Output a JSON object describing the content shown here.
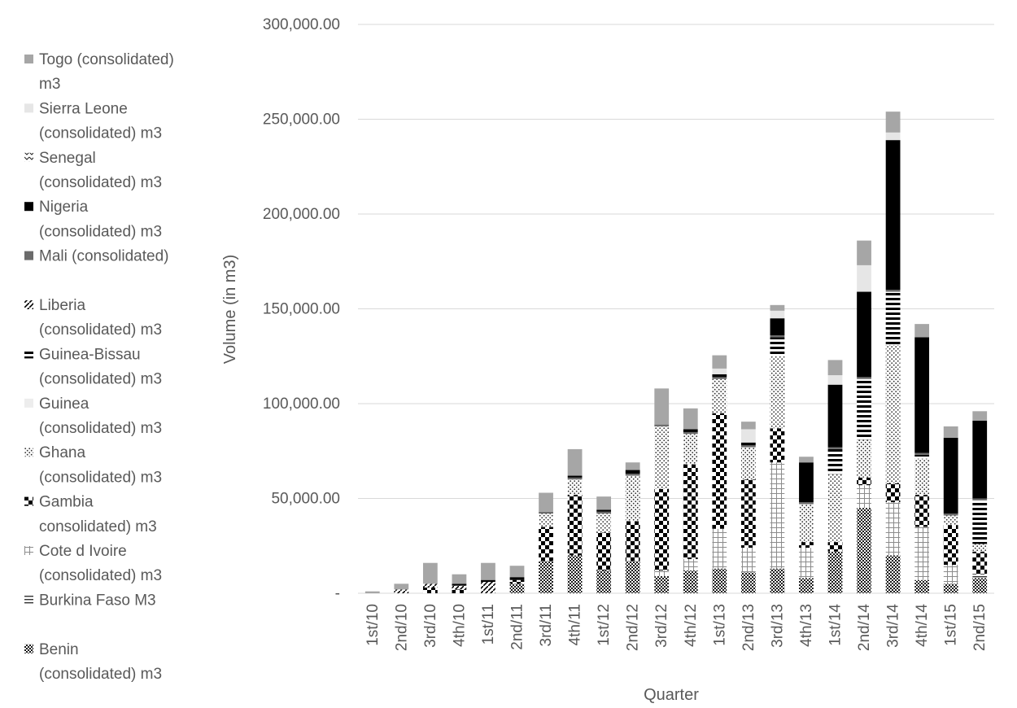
{
  "chart_data": {
    "type": "bar",
    "stacked": true,
    "title": "",
    "xlabel": "Quarter",
    "ylabel": "Volume (in m3)",
    "ylim": [
      0,
      300000
    ],
    "yticks": [
      0,
      50000,
      100000,
      150000,
      200000,
      250000,
      300000
    ],
    "ytick_labels": [
      "-",
      "50,000.00",
      "100,000.00",
      "150,000.00",
      "200,000.00",
      "250,000.00",
      "300,000.00"
    ],
    "grid": true,
    "legend_position": "left",
    "categories": [
      "1st/10",
      "2nd/10",
      "3rd/10",
      "4th/10",
      "1st/11",
      "2nd/11",
      "3rd/11",
      "4th/11",
      "1st/12",
      "2nd/12",
      "3rd/12",
      "4th/12",
      "1st/13",
      "2nd/13",
      "3rd/13",
      "4th/13",
      "1st/14",
      "2nd/14",
      "3rd/14",
      "4th/14",
      "1st/15",
      "2nd/15"
    ],
    "series": [
      {
        "name": "Benin (consolidated) m3",
        "pattern": "checker-dense",
        "values": [
          0,
          0,
          0,
          0,
          0,
          5000,
          17000,
          20000,
          12000,
          17000,
          9000,
          12000,
          13000,
          11000,
          13000,
          8000,
          22000,
          45000,
          20000,
          7000,
          5000,
          8000
        ]
      },
      {
        "name": "Burkina Faso M3",
        "pattern": "horizontal-lines",
        "values": [
          0,
          0,
          0,
          0,
          0,
          0,
          0,
          0,
          0,
          0,
          0,
          0,
          0,
          0,
          0,
          0,
          0,
          0,
          0,
          0,
          0,
          2000
        ]
      },
      {
        "name": "Cote d Ivoire (consolidated)  m3",
        "pattern": "grid",
        "values": [
          0,
          0,
          0,
          0,
          0,
          0,
          0,
          0,
          0,
          0,
          3000,
          6000,
          21000,
          13000,
          56000,
          16000,
          0,
          12000,
          28000,
          28000,
          10000,
          0
        ]
      },
      {
        "name": "Gambia consolidated) m3",
        "pattern": "big-checker",
        "values": [
          0,
          0,
          3000,
          2000,
          0,
          2000,
          18000,
          32000,
          20000,
          21000,
          43000,
          50000,
          61000,
          36000,
          18000,
          3000,
          5000,
          4000,
          10000,
          17000,
          21000,
          12000
        ]
      },
      {
        "name": "Ghana (consolidated) m3",
        "pattern": "dots",
        "values": [
          0,
          0,
          0,
          0,
          0,
          0,
          7000,
          8000,
          10000,
          24000,
          33000,
          16000,
          18000,
          17000,
          38000,
          20000,
          36000,
          20000,
          73000,
          19000,
          5000,
          4000
        ]
      },
      {
        "name": "Guinea (consolidated) m3",
        "pattern": "light-gray",
        "values": [
          0,
          0,
          0,
          0,
          0,
          0,
          0,
          0,
          0,
          0,
          0,
          0,
          0,
          0,
          0,
          0,
          0,
          0,
          0,
          0,
          0,
          0
        ]
      },
      {
        "name": "Guinea-Bissau (consolidated) m3",
        "pattern": "thick-horizontal",
        "values": [
          0,
          0,
          0,
          0,
          0,
          0,
          0,
          0,
          0,
          0,
          0,
          0,
          0,
          0,
          10000,
          0,
          13000,
          32000,
          28000,
          2000,
          0,
          23000
        ]
      },
      {
        "name": "Liberia (consolidated) m3",
        "pattern": "diagonal-dash",
        "values": [
          0,
          2000,
          2000,
          2000,
          6000,
          0,
          0,
          0,
          0,
          0,
          0,
          0,
          0,
          0,
          0,
          0,
          0,
          0,
          0,
          0,
          0,
          0
        ]
      },
      {
        "name": "Mali (consolidated)",
        "pattern": "dark-gray",
        "values": [
          0,
          0,
          0,
          0,
          0,
          0,
          1000,
          1000,
          1000,
          1000,
          1000,
          1000,
          1000,
          1000,
          1000,
          1000,
          1000,
          1000,
          1000,
          1000,
          1000,
          1000
        ]
      },
      {
        "name": "Nigeria (consolidated) m3",
        "pattern": "solid-black",
        "values": [
          0,
          0,
          0,
          1000,
          1000,
          1500,
          0,
          1000,
          1000,
          2000,
          0,
          1500,
          1500,
          1500,
          9000,
          21000,
          33000,
          45000,
          79000,
          61000,
          40000,
          41000
        ]
      },
      {
        "name": "Senegal (consolidated) m3",
        "pattern": "zigzag",
        "values": [
          0,
          0,
          0,
          0,
          0,
          0,
          0,
          0,
          0,
          0,
          0,
          0,
          0,
          0,
          0,
          0,
          0,
          0,
          0,
          0,
          0,
          0
        ]
      },
      {
        "name": "Sierra Leone (consolidated) m3",
        "pattern": "very-light-gray",
        "values": [
          0,
          0,
          0,
          0,
          0,
          0,
          0,
          0,
          0,
          0,
          0,
          0,
          3000,
          7000,
          4000,
          0,
          5000,
          14000,
          4000,
          0,
          0,
          0
        ]
      },
      {
        "name": "Togo (consolidated) m3",
        "pattern": "medium-gray",
        "values": [
          1000,
          3000,
          11000,
          5000,
          9000,
          6000,
          10000,
          14000,
          7000,
          4000,
          19000,
          11000,
          7000,
          4000,
          3000,
          3000,
          8000,
          13000,
          11000,
          7000,
          6000,
          5000
        ]
      }
    ],
    "legend": [
      {
        "series": 12,
        "lines": [
          "Togo (consolidated)",
          "m3"
        ]
      },
      {
        "series": 11,
        "lines": [
          "Sierra Leone",
          "(consolidated) m3"
        ]
      },
      {
        "series": 10,
        "lines": [
          "Senegal",
          "(consolidated) m3"
        ]
      },
      {
        "series": 9,
        "lines": [
          "Nigeria",
          "(consolidated) m3"
        ]
      },
      {
        "series": 8,
        "lines": [
          "Mali (consolidated)"
        ]
      },
      {
        "series": 7,
        "lines": [
          "Liberia",
          "(consolidated) m3"
        ]
      },
      {
        "series": 6,
        "lines": [
          "Guinea-Bissau",
          "(consolidated) m3"
        ]
      },
      {
        "series": 5,
        "lines": [
          "Guinea",
          "(consolidated) m3"
        ]
      },
      {
        "series": 4,
        "lines": [
          "Ghana",
          "(consolidated) m3"
        ]
      },
      {
        "series": 3,
        "lines": [
          "Gambia",
          "consolidated) m3"
        ]
      },
      {
        "series": 2,
        "lines": [
          "Cote d Ivoire",
          "(consolidated)  m3"
        ]
      },
      {
        "series": 1,
        "lines": [
          "Burkina Faso M3"
        ]
      },
      {
        "series": 0,
        "lines": [
          "Benin",
          "(consolidated) m3"
        ]
      }
    ]
  }
}
